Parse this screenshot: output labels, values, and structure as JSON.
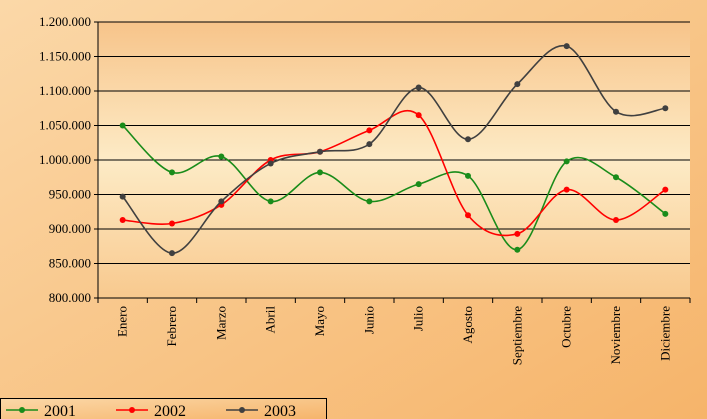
{
  "chart_data": {
    "type": "line",
    "categories": [
      "Enero",
      "Febrero",
      "Marzo",
      "Abril",
      "Mayo",
      "Junio",
      "Julio",
      "Agosto",
      "Septiembre",
      "Octubre",
      "Noviembre",
      "Diciembre"
    ],
    "series": [
      {
        "name": "2001",
        "color": "#1a8c1a",
        "values": [
          1050000,
          982000,
          1005000,
          940000,
          982000,
          940000,
          965000,
          977000,
          870000,
          998000,
          975000,
          922000
        ]
      },
      {
        "name": "2002",
        "color": "#ff0000",
        "values": [
          913000,
          908000,
          935000,
          1000000,
          1012000,
          1043000,
          1065000,
          920000,
          893000,
          957000,
          913000,
          957000
        ]
      },
      {
        "name": "2003",
        "color": "#404040",
        "values": [
          947000,
          865000,
          940000,
          995000,
          1012000,
          1023000,
          1105000,
          1030000,
          1110000,
          1165000,
          1070000,
          1075000
        ]
      }
    ],
    "ylim": [
      800000,
      1200000
    ],
    "yticks": [
      {
        "value": 800000,
        "label": "800.000"
      },
      {
        "value": 850000,
        "label": "850.000"
      },
      {
        "value": 900000,
        "label": "900.000"
      },
      {
        "value": 950000,
        "label": "950.000"
      },
      {
        "value": 1000000,
        "label": "1.000.000"
      },
      {
        "value": 1050000,
        "label": "1.050.000"
      },
      {
        "value": 1100000,
        "label": "1.100.000"
      },
      {
        "value": 1150000,
        "label": "1.150.000"
      },
      {
        "value": 1200000,
        "label": "1.200.000"
      }
    ],
    "grid": true,
    "legend": "bottom-left"
  }
}
